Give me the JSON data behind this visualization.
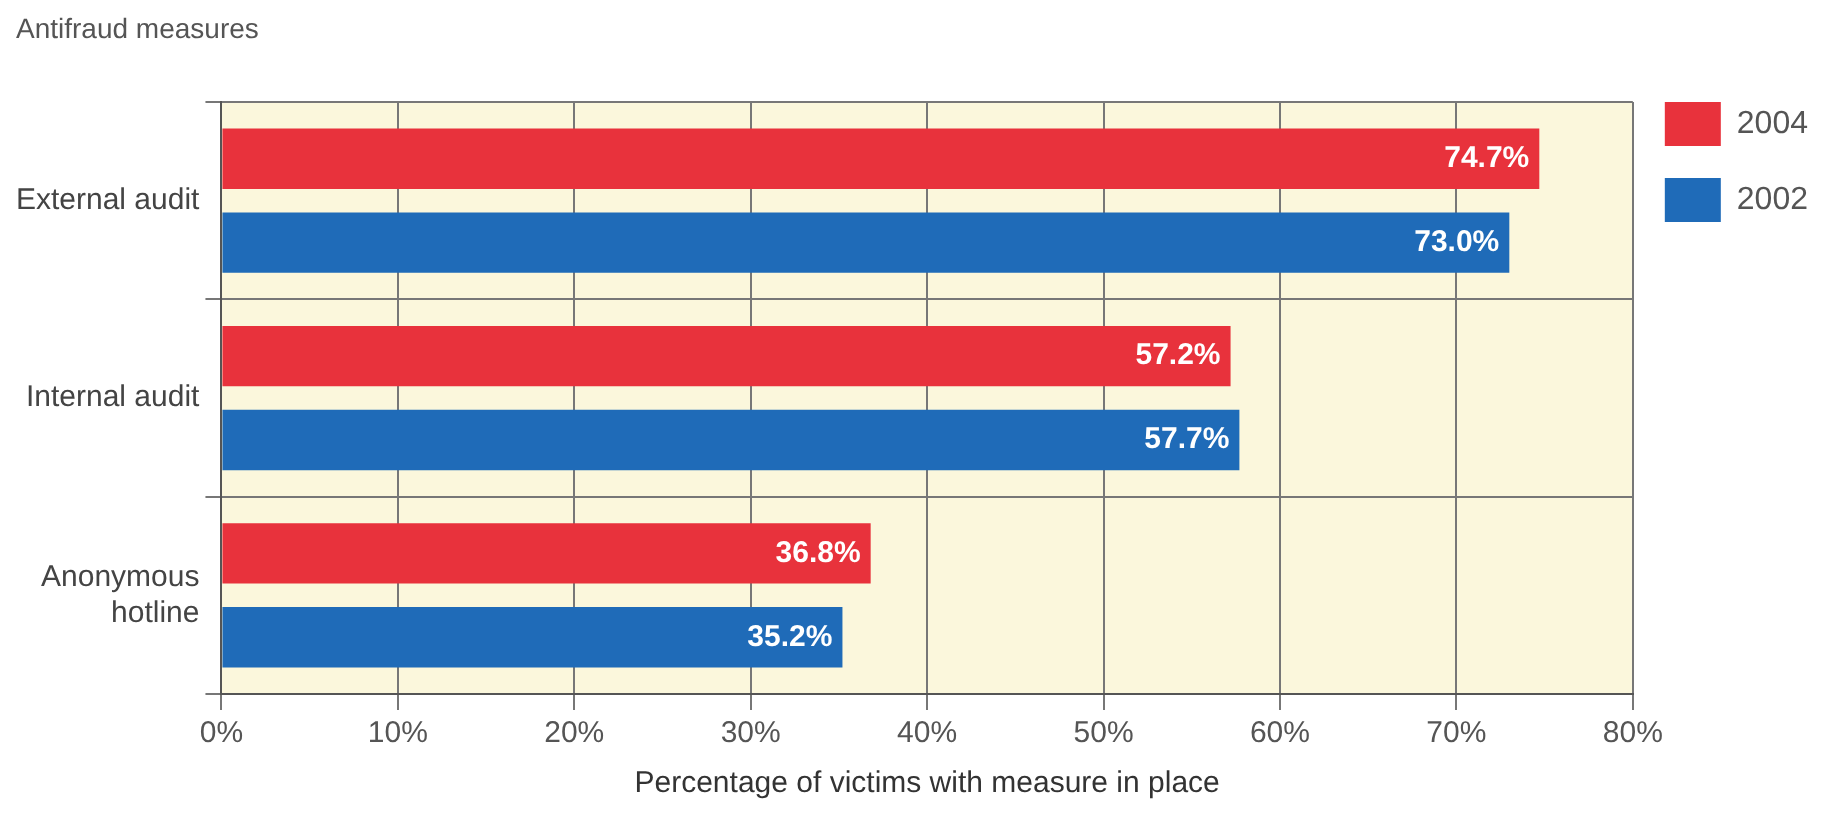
{
  "chart_data": {
    "type": "bar",
    "orientation": "horizontal",
    "title": "Antifraud measures",
    "xlabel": "Percentage of victims with measure in place",
    "categories": [
      "External audit",
      "Internal audit",
      "Anonymous hotline"
    ],
    "series": [
      {
        "name": "2004",
        "color": "#e8323c",
        "values": [
          74.7,
          57.2,
          36.8
        ],
        "value_labels": [
          "74.7%",
          "57.2%",
          "36.8%"
        ]
      },
      {
        "name": "2002",
        "color": "#1f6bb8",
        "values": [
          73.0,
          57.7,
          35.2
        ],
        "value_labels": [
          "73.0%",
          "57.7%",
          "35.2%"
        ]
      }
    ],
    "xlim": [
      0,
      80
    ],
    "xticks": [
      {
        "value": 0,
        "label": "0%"
      },
      {
        "value": 10,
        "label": "10%"
      },
      {
        "value": 20,
        "label": "20%"
      },
      {
        "value": 30,
        "label": "30%"
      },
      {
        "value": 40,
        "label": "40%"
      },
      {
        "value": 50,
        "label": "50%"
      },
      {
        "value": 60,
        "label": "60%"
      },
      {
        "value": 70,
        "label": "70%"
      },
      {
        "value": 80,
        "label": "80%"
      }
    ],
    "grid": true,
    "legend": "right"
  }
}
